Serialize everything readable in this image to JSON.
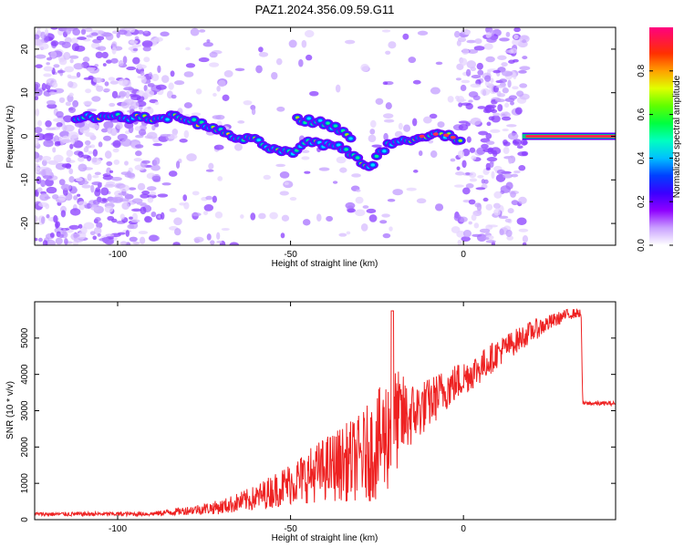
{
  "title": "PAZ1.2024.356.09.59.G11",
  "chart_data": [
    {
      "type": "heatmap",
      "title": "PAZ1.2024.356.09.59.G11",
      "xlabel": "Height of straight line (km)",
      "ylabel": "Frequency (Hz)",
      "xlim": [
        -124,
        44
      ],
      "ylim": [
        -25,
        25
      ],
      "xticks": [
        -100,
        -50,
        0
      ],
      "yticks": [
        -20,
        -10,
        0,
        10,
        20
      ],
      "colorbar": {
        "label": "Normalized spectral amplitude",
        "range": [
          0,
          1
        ],
        "ticks": [
          "0.0",
          "0.2",
          "0.4",
          "0.6",
          "0.8"
        ],
        "colors": [
          "#ffffff",
          "#c9a0ff",
          "#8f00ff",
          "#5a00ff",
          "#0000ff",
          "#0090ff",
          "#00ffff",
          "#00ff7f",
          "#00ff00",
          "#7fff00",
          "#ffff00",
          "#ff8000",
          "#ff0000",
          "#ff0080"
        ]
      },
      "ridge": {
        "description_points_x_km": [
          -112,
          -100,
          -90,
          -85,
          -80,
          -75,
          -70,
          -65,
          -60,
          -55,
          -50,
          -45,
          -40,
          -35,
          -30,
          -27,
          -22,
          -18,
          -14,
          -10,
          -6,
          -2,
          15,
          20,
          30,
          44
        ],
        "frequency_hz": [
          4.5,
          4.5,
          4.0,
          4.5,
          4.0,
          2.5,
          1.0,
          -0.5,
          -1.0,
          -3.0,
          -4.0,
          -1.5,
          -2.0,
          -2.5,
          -5.5,
          -7.0,
          -2.0,
          -1.0,
          -0.5,
          0.5,
          0.5,
          -0.5,
          0.5,
          0.0,
          0.0,
          0.0
        ],
        "secondary_x_km": [
          -48,
          -44,
          -40,
          -36,
          -32
        ],
        "secondary_hz": [
          4.0,
          3.5,
          3.0,
          1.5,
          -1.0
        ]
      }
    },
    {
      "type": "line",
      "xlabel": "Height of straight line (km)",
      "ylabel": "SNR (10 * v/v)",
      "xlim": [
        -124,
        44
      ],
      "ylim": [
        0,
        6000
      ],
      "xticks": [
        -100,
        -50,
        0
      ],
      "yticks": [
        0,
        1000,
        2000,
        3000,
        4000,
        5000
      ],
      "series": [
        {
          "color": "#ee2222",
          "envelope_x": [
            -124,
            -90,
            -80,
            -70,
            -60,
            -50,
            -40,
            -30,
            -25,
            -22,
            -20,
            -15,
            -10,
            -5,
            0,
            5,
            10,
            20,
            30,
            34,
            34.5,
            44
          ],
          "envelope_mean": [
            150,
            160,
            250,
            350,
            600,
            1000,
            1400,
            1700,
            2000,
            2400,
            2700,
            2900,
            3200,
            3600,
            3900,
            4200,
            4600,
            5200,
            5650,
            5700,
            3200,
            3200
          ],
          "envelope_amp": [
            60,
            60,
            120,
            200,
            350,
            600,
            900,
            1200,
            1500,
            1700,
            1500,
            900,
            700,
            600,
            500,
            450,
            400,
            300,
            150,
            120,
            60,
            60
          ]
        }
      ]
    }
  ]
}
